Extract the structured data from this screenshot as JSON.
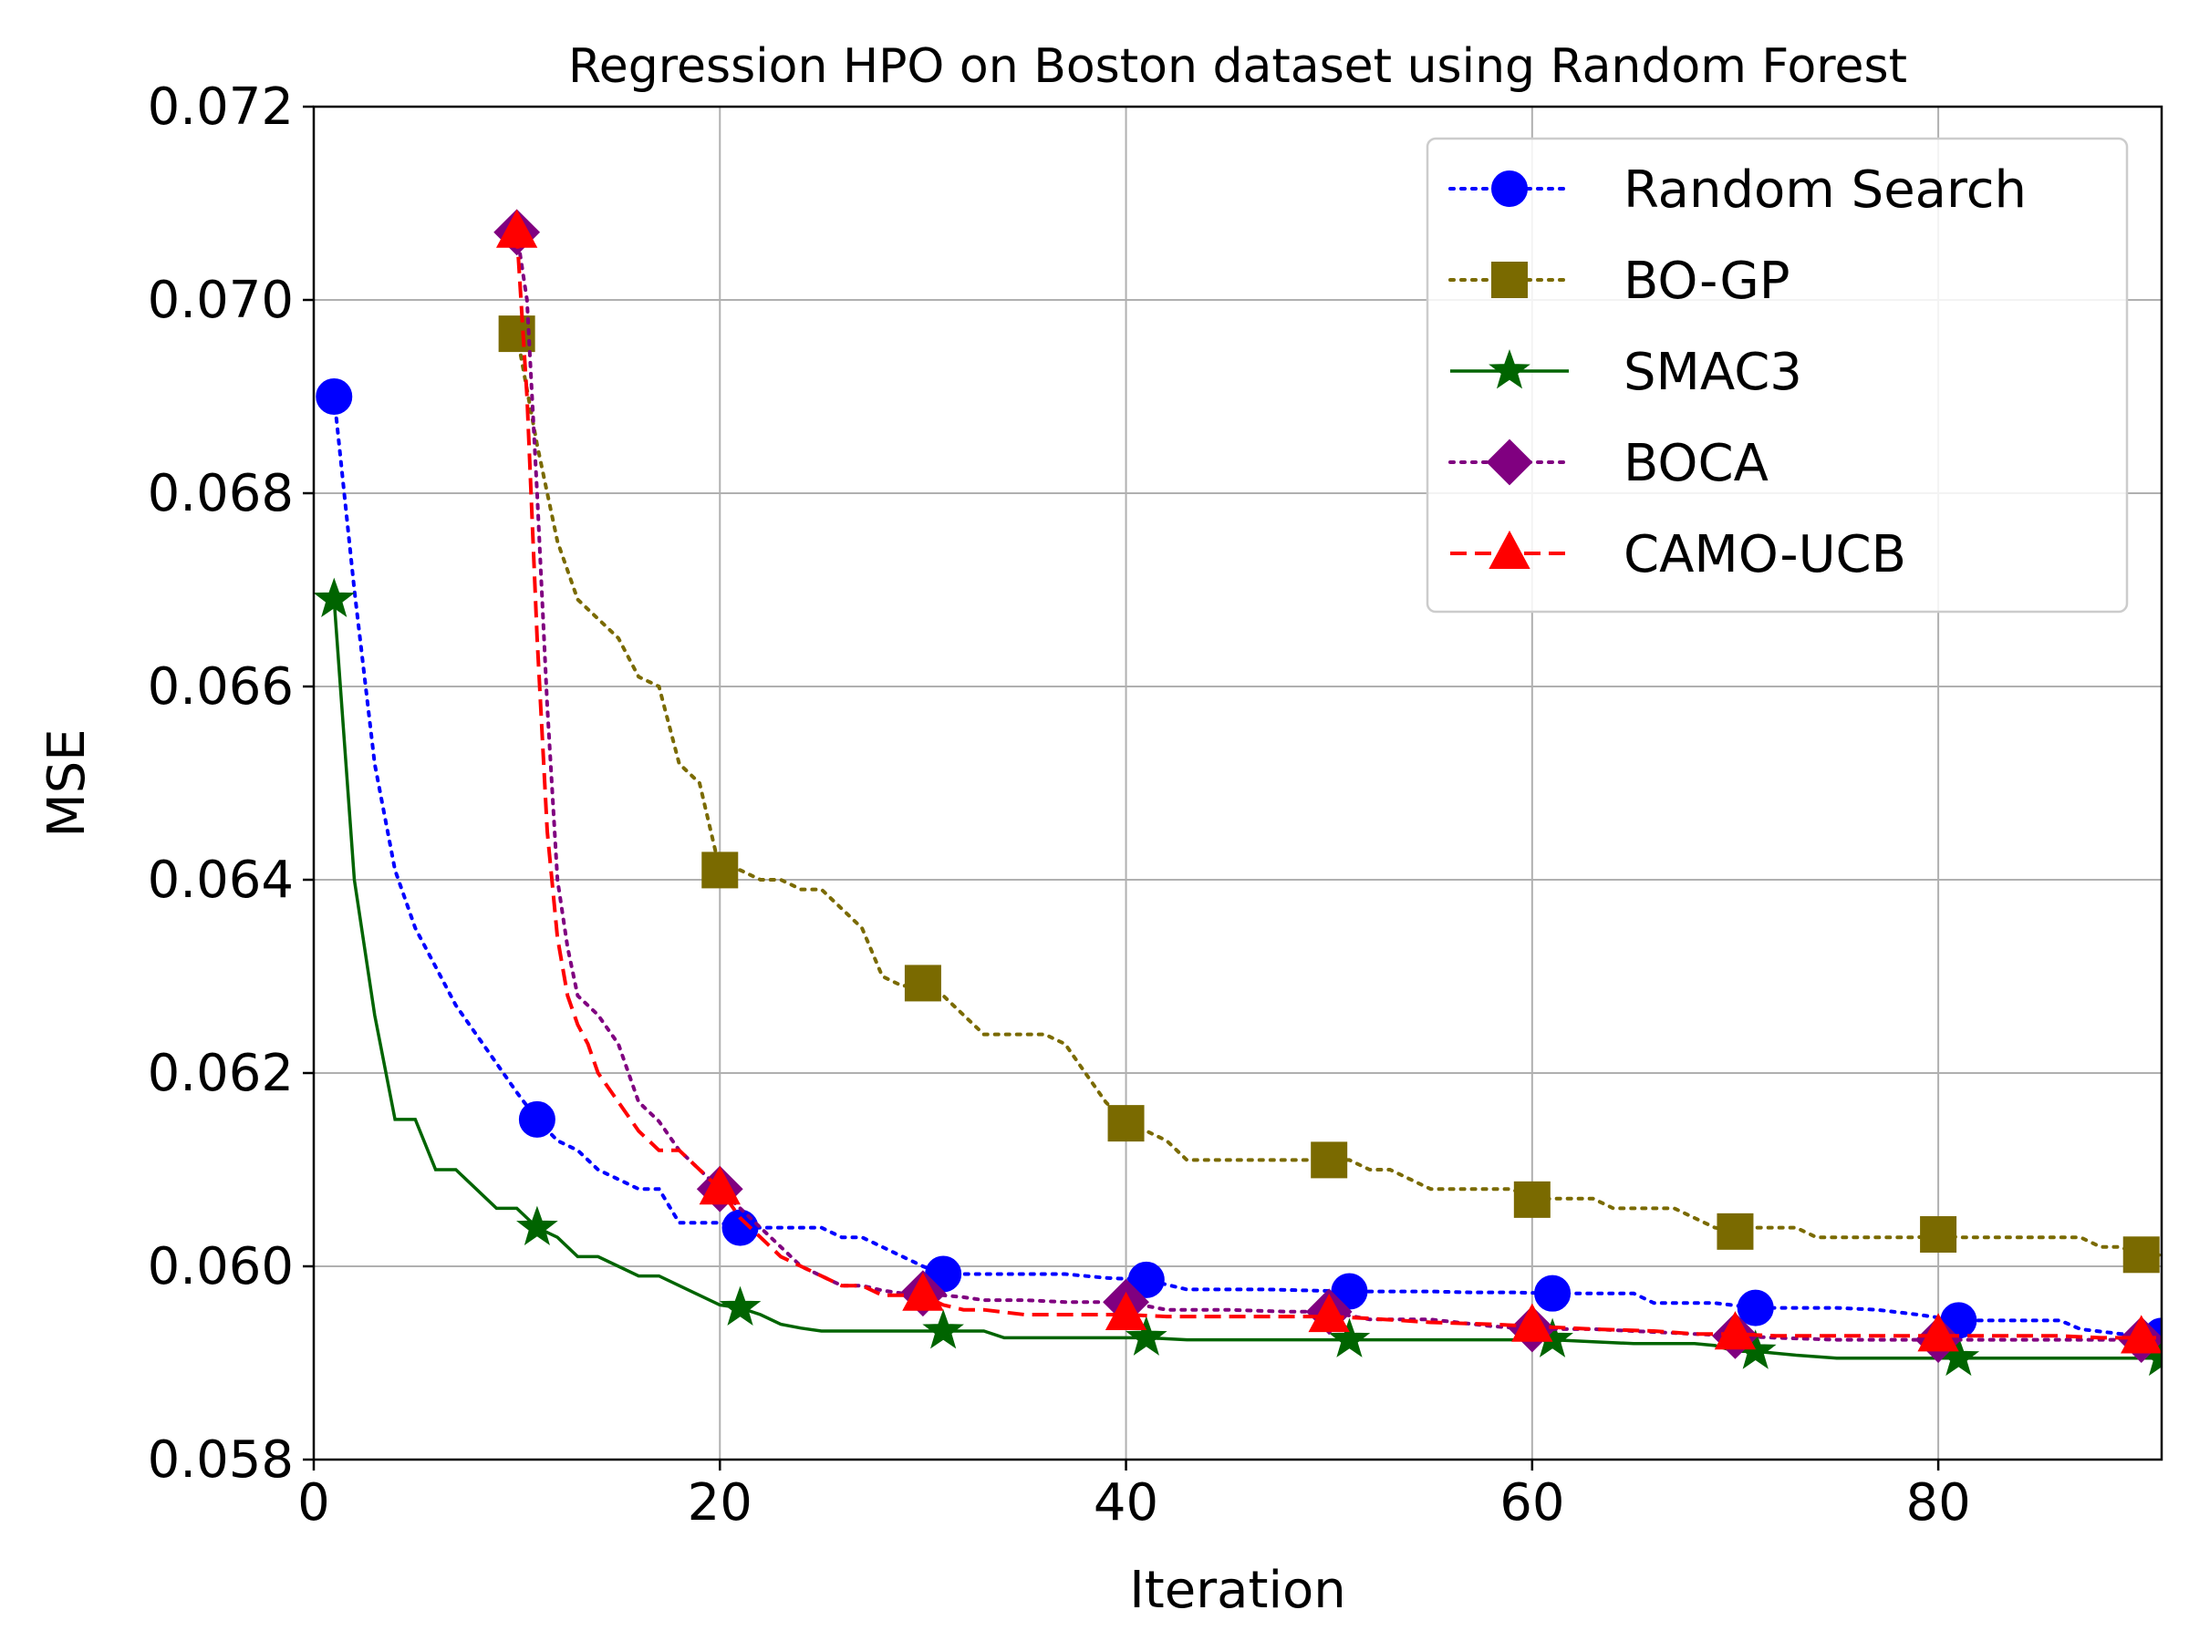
{
  "chart_data": {
    "type": "line",
    "title": "Regression HPO on Boston dataset using Random Forest",
    "xlabel": "Iteration",
    "ylabel": "MSE",
    "xlim": [
      0,
      91
    ],
    "ylim": [
      0.058,
      0.072
    ],
    "xticks": [
      0,
      20,
      40,
      60,
      80
    ],
    "xtick_labels": [
      "0",
      "20",
      "40",
      "60",
      "80"
    ],
    "yticks": [
      0.058,
      0.06,
      0.062,
      0.064,
      0.066,
      0.068,
      0.07,
      0.072
    ],
    "ytick_labels": [
      "0.058",
      "0.060",
      "0.062",
      "0.064",
      "0.066",
      "0.068",
      "0.070",
      "0.072"
    ],
    "grid": true,
    "legend_position": "top-right",
    "series": [
      {
        "name": "Random Search",
        "color": "#0000ff",
        "linestyle": "dotted",
        "marker": "circle",
        "x": [
          1,
          2,
          3,
          4,
          5,
          6,
          7,
          8,
          9,
          10,
          11,
          12,
          13,
          14,
          15,
          16,
          17,
          18,
          19,
          20,
          21,
          22,
          23,
          24,
          25,
          26,
          27,
          28,
          29,
          30,
          31,
          33,
          35,
          37,
          39,
          41,
          43,
          45,
          47,
          49,
          51,
          53,
          55,
          57,
          59,
          61,
          63,
          65,
          66,
          67,
          69,
          71,
          73,
          75,
          77,
          79,
          81,
          83,
          85,
          86,
          87,
          89,
          91
        ],
        "y": [
          0.069,
          0.067,
          0.0652,
          0.0641,
          0.0635,
          0.0631,
          0.0627,
          0.0624,
          0.0621,
          0.0618,
          0.06152,
          0.0613,
          0.0612,
          0.061,
          0.0609,
          0.0608,
          0.0608,
          0.06045,
          0.06045,
          0.06045,
          0.0604,
          0.0604,
          0.0604,
          0.0604,
          0.0604,
          0.0603,
          0.0603,
          0.0602,
          0.0601,
          0.06,
          0.05992,
          0.05992,
          0.05992,
          0.05992,
          0.05988,
          0.05986,
          0.05976,
          0.05976,
          0.05976,
          0.05975,
          0.05974,
          0.05974,
          0.05974,
          0.05973,
          0.05973,
          0.05972,
          0.05972,
          0.05972,
          0.05962,
          0.05962,
          0.05962,
          0.05957,
          0.05957,
          0.05957,
          0.05955,
          0.0595,
          0.05944,
          0.05944,
          0.05944,
          0.05944,
          0.05935,
          0.0593,
          0.05928
        ],
        "marker_x": [
          1,
          11,
          21,
          31,
          41,
          51,
          61,
          71,
          81,
          91
        ],
        "marker_y": [
          0.069,
          0.06152,
          0.0604,
          0.05992,
          0.05986,
          0.05974,
          0.05972,
          0.05957,
          0.05944,
          0.05928
        ]
      },
      {
        "name": "BO-GP",
        "color": "#7a6a00",
        "linestyle": "dotted",
        "marker": "square",
        "x": [
          10,
          11,
          12,
          13,
          14,
          15,
          16,
          17,
          18,
          19,
          20,
          21,
          22,
          23,
          24,
          25,
          26,
          27,
          28,
          29,
          30,
          31,
          32,
          33,
          34,
          35,
          36,
          37,
          38,
          39,
          40,
          41,
          42,
          43,
          44,
          45,
          46,
          47,
          48,
          49,
          50,
          51,
          52,
          53,
          54,
          55,
          56,
          57,
          58,
          59,
          60,
          61,
          62,
          63,
          64,
          65,
          66,
          67,
          68,
          69,
          70,
          71,
          72,
          73,
          74,
          75,
          76,
          77,
          78,
          79,
          80,
          81,
          82,
          83,
          84,
          85,
          86,
          87,
          88,
          89,
          90,
          91
        ],
        "y": [
          0.06965,
          0.0685,
          0.0675,
          0.0669,
          0.0667,
          0.0665,
          0.0661,
          0.066,
          0.0652,
          0.065,
          0.0641,
          0.0641,
          0.064,
          0.064,
          0.0639,
          0.0639,
          0.0637,
          0.0635,
          0.063,
          0.0629,
          0.06293,
          0.0628,
          0.0626,
          0.0624,
          0.0624,
          0.0624,
          0.0624,
          0.0623,
          0.062,
          0.0617,
          0.06148,
          0.0614,
          0.0613,
          0.0611,
          0.0611,
          0.0611,
          0.0611,
          0.0611,
          0.0611,
          0.0611,
          0.0611,
          0.0611,
          0.061,
          0.061,
          0.0609,
          0.0608,
          0.0608,
          0.0608,
          0.0608,
          0.0608,
          0.06069,
          0.0607,
          0.0607,
          0.0607,
          0.0606,
          0.0606,
          0.0606,
          0.0606,
          0.0605,
          0.0604,
          0.06036,
          0.0604,
          0.0604,
          0.0604,
          0.0603,
          0.0603,
          0.0603,
          0.0603,
          0.0603,
          0.0603,
          0.06033,
          0.0603,
          0.0603,
          0.0603,
          0.0603,
          0.0603,
          0.0603,
          0.0603,
          0.0602,
          0.0602,
          0.0601,
          0.06012
        ],
        "marker_x": [
          10,
          20,
          30,
          40,
          50,
          60,
          70,
          80,
          90
        ],
        "marker_y": [
          0.06965,
          0.0641,
          0.06293,
          0.06148,
          0.0611,
          0.06069,
          0.06036,
          0.06033,
          0.06012
        ]
      },
      {
        "name": "SMAC3",
        "color": "#006400",
        "linestyle": "solid",
        "marker": "star",
        "x": [
          1,
          2,
          3,
          4,
          5,
          6,
          7,
          8,
          9,
          10,
          11,
          12,
          13,
          14,
          15,
          16,
          17,
          18,
          19,
          20,
          21,
          22,
          23,
          24,
          25,
          26,
          27,
          28,
          29,
          30,
          31,
          32,
          33,
          34,
          36,
          38,
          40,
          41,
          43,
          45,
          47,
          50,
          51,
          55,
          60,
          61,
          63,
          65,
          67,
          68,
          69,
          70,
          71,
          73,
          75,
          77,
          79,
          80,
          81,
          85,
          90,
          91
        ],
        "y": [
          0.0669,
          0.064,
          0.0626,
          0.06152,
          0.06152,
          0.061,
          0.061,
          0.0608,
          0.0606,
          0.0606,
          0.0604,
          0.0603,
          0.0601,
          0.0601,
          0.06,
          0.0599,
          0.0599,
          0.0598,
          0.0597,
          0.0596,
          0.05957,
          0.0595,
          0.0594,
          0.05936,
          0.05933,
          0.05933,
          0.05933,
          0.05933,
          0.05933,
          0.05933,
          0.05933,
          0.05933,
          0.05933,
          0.05926,
          0.05926,
          0.05926,
          0.05926,
          0.05926,
          0.05924,
          0.05924,
          0.05924,
          0.05924,
          0.05924,
          0.05924,
          0.05924,
          0.05924,
          0.05922,
          0.0592,
          0.0592,
          0.0592,
          0.05918,
          0.05912,
          0.05912,
          0.05908,
          0.05905,
          0.05905,
          0.05905,
          0.05905,
          0.05905,
          0.05905,
          0.05905,
          0.05905
        ],
        "marker_x": [
          1,
          11,
          21,
          31,
          41,
          51,
          61,
          71,
          81,
          91
        ],
        "marker_y": [
          0.0669,
          0.0604,
          0.05957,
          0.05933,
          0.05926,
          0.05924,
          0.05924,
          0.05912,
          0.05905,
          0.05905
        ]
      },
      {
        "name": "BOCA",
        "color": "#800080",
        "linestyle": "dotted",
        "marker": "diamond",
        "x": [
          10,
          10.5,
          11,
          11.5,
          12,
          12.5,
          13,
          14,
          15,
          16,
          17,
          18,
          19,
          20,
          21,
          22,
          23,
          24,
          25,
          26,
          27,
          28,
          29,
          30,
          31,
          32,
          33,
          35,
          37,
          40,
          42,
          45,
          48,
          50,
          52,
          55,
          58,
          60,
          63,
          66,
          68,
          70,
          72,
          75,
          78,
          80,
          83,
          86,
          88,
          91
        ],
        "y": [
          0.0707,
          0.07,
          0.068,
          0.0658,
          0.064,
          0.0633,
          0.0628,
          0.0626,
          0.0623,
          0.0617,
          0.0615,
          0.0612,
          0.061,
          0.0608,
          0.0606,
          0.0604,
          0.0602,
          0.06,
          0.0599,
          0.0598,
          0.0598,
          0.05975,
          0.05972,
          0.05972,
          0.0597,
          0.05968,
          0.05965,
          0.05965,
          0.05963,
          0.05963,
          0.05955,
          0.05955,
          0.05953,
          0.05953,
          0.05945,
          0.05945,
          0.05938,
          0.05935,
          0.05935,
          0.05932,
          0.0593,
          0.05928,
          0.05926,
          0.05924,
          0.05924,
          0.05924,
          0.05924,
          0.05924,
          0.05924,
          0.05924
        ],
        "marker_x": [
          10,
          20,
          30,
          40,
          50,
          60,
          70,
          80,
          90
        ],
        "marker_y": [
          0.0707,
          0.0608,
          0.05972,
          0.05963,
          0.05953,
          0.05935,
          0.05928,
          0.05924,
          0.05924
        ]
      },
      {
        "name": "CAMO-UCB",
        "color": "#ff0000",
        "linestyle": "dashed",
        "marker": "triangle",
        "x": [
          10,
          10.5,
          11,
          11.5,
          12,
          12.5,
          13,
          13.5,
          14,
          15,
          16,
          17,
          18,
          19,
          20,
          21,
          22,
          23,
          24,
          25,
          26,
          27,
          28,
          29,
          30,
          31,
          32,
          33,
          35,
          37,
          40,
          42,
          45,
          48,
          50,
          52,
          55,
          58,
          60,
          63,
          66,
          68,
          70,
          72,
          75,
          78,
          80,
          83,
          86,
          88,
          91
        ],
        "y": [
          0.0707,
          0.069,
          0.0665,
          0.0645,
          0.0634,
          0.0628,
          0.0625,
          0.0623,
          0.062,
          0.0617,
          0.0614,
          0.0612,
          0.0612,
          0.061,
          0.0608,
          0.0605,
          0.0603,
          0.0601,
          0.06,
          0.0599,
          0.0598,
          0.0598,
          0.0597,
          0.0597,
          0.0597,
          0.0596,
          0.05955,
          0.05955,
          0.0595,
          0.0595,
          0.0595,
          0.05948,
          0.05948,
          0.05948,
          0.05948,
          0.05946,
          0.05942,
          0.0594,
          0.05938,
          0.05935,
          0.05933,
          0.0593,
          0.0593,
          0.05928,
          0.05928,
          0.05928,
          0.05928,
          0.05928,
          0.05928,
          0.05926,
          0.05926
        ],
        "marker_x": [
          10,
          20,
          30,
          40,
          50,
          60,
          70,
          80,
          90
        ],
        "marker_y": [
          0.0707,
          0.0608,
          0.0597,
          0.0595,
          0.05948,
          0.05938,
          0.0593,
          0.05928,
          0.05926
        ]
      }
    ]
  }
}
